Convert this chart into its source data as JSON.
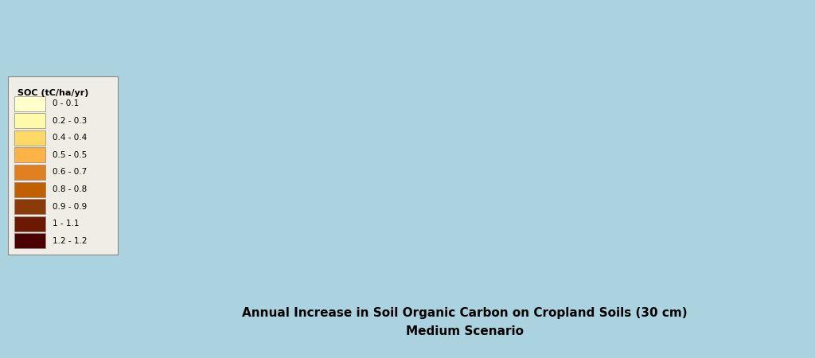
{
  "title_line1": "Annual Increase in Soil Organic Carbon on Cropland Soils (30 cm)",
  "title_line2": "Medium Scenario",
  "title_fontsize": 11,
  "title_fontweight": "bold",
  "ocean_color": "#aad3df",
  "land_color": "#f5f5f0",
  "border_color": "#999999",
  "legend_title": "SOC (tC/ha/yr)",
  "legend_labels": [
    "0 - 0.1",
    "0.2 - 0.3",
    "0.4 - 0.4",
    "0.5 - 0.5",
    "0.6 - 0.7",
    "0.8 - 0.8",
    "0.9 - 0.9",
    "1 - 1.1",
    "1.2 - 1.2"
  ],
  "legend_colors": [
    "#ffffcc",
    "#fffaaa",
    "#ffd966",
    "#ffb347",
    "#e08020",
    "#c06000",
    "#8B3A0A",
    "#6B1A00",
    "#4B0000"
  ],
  "figsize": [
    10.24,
    4.5
  ],
  "dpi": 100,
  "map_extent": [
    -180,
    180,
    -60,
    85
  ]
}
